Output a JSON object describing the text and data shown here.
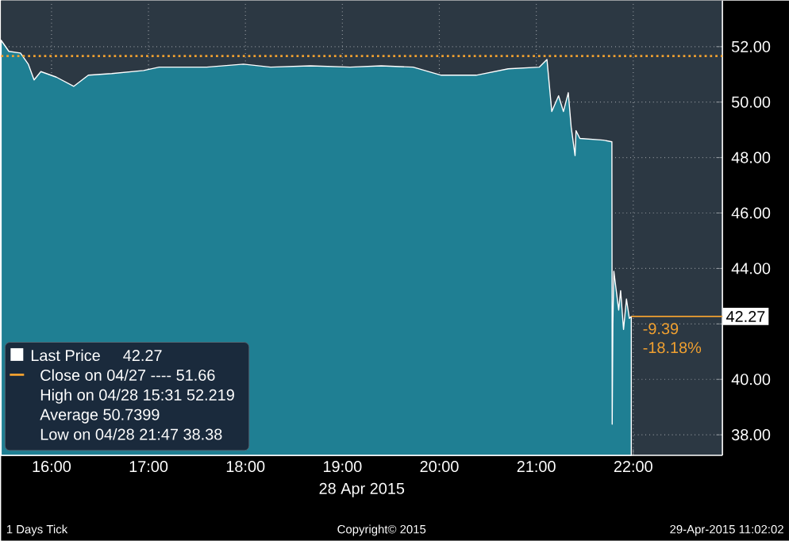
{
  "chart_data": {
    "type": "area",
    "xlabel": "28 Apr 2015",
    "series": [
      {
        "name": "Last Price",
        "color": "#1f7f93",
        "x": [
          15.48,
          15.56,
          15.68,
          15.76,
          15.82,
          15.89,
          16.05,
          16.23,
          16.38,
          16.62,
          16.95,
          17.11,
          17.6,
          17.98,
          18.26,
          18.67,
          19.08,
          19.4,
          19.73,
          20.02,
          20.38,
          20.71,
          21.03,
          21.11,
          21.16,
          21.23,
          21.28,
          21.33,
          21.36,
          21.4,
          21.41,
          21.45,
          21.69,
          21.78,
          21.783,
          21.79,
          21.8,
          21.85,
          21.87,
          21.9,
          21.93,
          21.96,
          21.98
        ],
        "values": [
          52.23,
          51.83,
          51.77,
          51.37,
          50.8,
          51.1,
          50.9,
          50.57,
          50.97,
          51.03,
          51.14,
          51.26,
          51.26,
          51.37,
          51.26,
          51.31,
          51.26,
          51.31,
          51.26,
          50.97,
          50.97,
          51.2,
          51.26,
          51.54,
          49.66,
          50.23,
          49.66,
          50.34,
          49.1,
          48.07,
          48.97,
          48.69,
          48.63,
          48.57,
          38.38,
          42.0,
          43.9,
          42.5,
          43.2,
          41.8,
          42.9,
          42.2,
          42.27
        ]
      }
    ],
    "xlim": [
      15.48,
      22.92
    ],
    "ylim": [
      37.26,
      53.66
    ],
    "xticks": [
      {
        "value": 16,
        "label": "16:00"
      },
      {
        "value": 17,
        "label": "17:00"
      },
      {
        "value": 18,
        "label": "18:00"
      },
      {
        "value": 19,
        "label": "19:00"
      },
      {
        "value": 20,
        "label": "20:00"
      },
      {
        "value": 21,
        "label": "21:00"
      },
      {
        "value": 22,
        "label": "22:00"
      }
    ],
    "yticks": [
      {
        "value": 38,
        "label": "38.00"
      },
      {
        "value": 40,
        "label": "40.00"
      },
      {
        "value": 42,
        "label": null
      },
      {
        "value": 44,
        "label": "44.00"
      },
      {
        "value": 46,
        "label": "46.00"
      },
      {
        "value": 48,
        "label": "48.00"
      },
      {
        "value": 50,
        "label": "50.00"
      },
      {
        "value": 52,
        "label": "52.00"
      }
    ],
    "ref_lines": [
      {
        "axis": "y",
        "value": 51.66,
        "color": "#f0a030",
        "line_style": "dotted"
      }
    ],
    "grid": true,
    "legend": "bottom left",
    "annotations": [
      "42.27",
      "Close on 04/27 ---- 51.66",
      "High on 04/28 15:31 52.219",
      "Average 50.7399",
      "Low on 04/28 21:47 38.38",
      {
        "text": "42.27",
        "x": 21.98,
        "y": 42.27
      },
      "-9.39",
      "-18.18%",
      "1 Days Tick",
      "Copyright© 2015",
      "29-Apr-2015 11:02:02"
    ]
  }
}
